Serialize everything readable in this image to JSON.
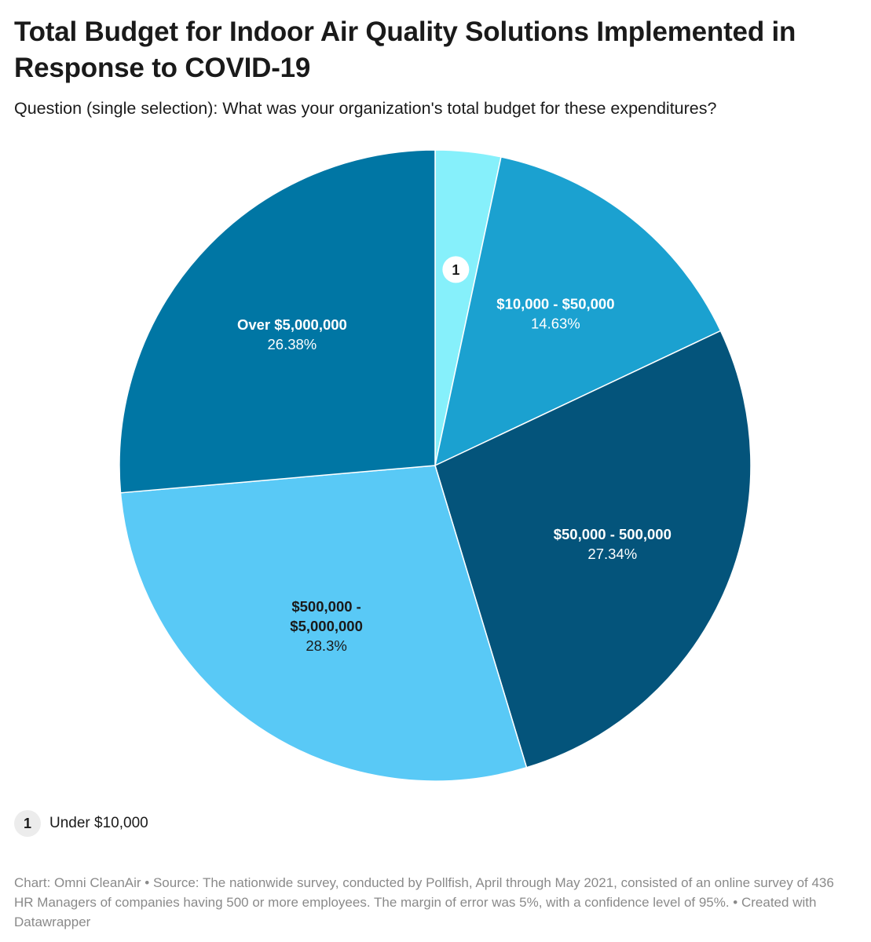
{
  "header": {
    "title": "Total Budget for Indoor Air Quality Solutions Implemented in Response to COVID-19",
    "subtitle": "Question (single selection): What was your organization's total budget for these expenditures?"
  },
  "chart_data": {
    "type": "pie",
    "title": "Total Budget for Indoor Air Quality Solutions Implemented in Response to COVID-19",
    "subtitle": "Question (single selection): What was your organization's total budget for these expenditures?",
    "start": "12 o'clock",
    "direction": "clockwise",
    "slices": [
      {
        "label": "Under $10,000",
        "value": 3.35,
        "color": "#86f0fb",
        "display": "marker",
        "marker": "1"
      },
      {
        "label": "$10,000 - $50,000",
        "value": 14.63,
        "value_label": "14.63%",
        "color": "#1ba1d0",
        "text_color": "#ffffff"
      },
      {
        "label": "$50,000 - 500,000",
        "value": 27.34,
        "value_label": "27.34%",
        "color": "#04547b",
        "text_color": "#ffffff"
      },
      {
        "label": "$500,000 - $5,000,000",
        "label_lines": [
          "$500,000 -",
          "$5,000,000"
        ],
        "value": 28.3,
        "value_label": "28.3%",
        "color": "#59c9f6",
        "text_color": "#1a1a1a"
      },
      {
        "label": "Over $5,000,000",
        "value": 26.38,
        "value_label": "26.38%",
        "color": "#0076a4",
        "text_color": "#ffffff"
      }
    ]
  },
  "legend": {
    "marker": "1",
    "text": "Under $10,000"
  },
  "footer": {
    "text": "Chart: Omni CleanAir • Source: The nationwide survey, conducted by Pollfish, April through May 2021, consisted of an online survey of 436 HR Managers of companies having 500 or more employees. The margin of error was 5%, with a confidence level of 95%. • Created with Datawrapper"
  }
}
